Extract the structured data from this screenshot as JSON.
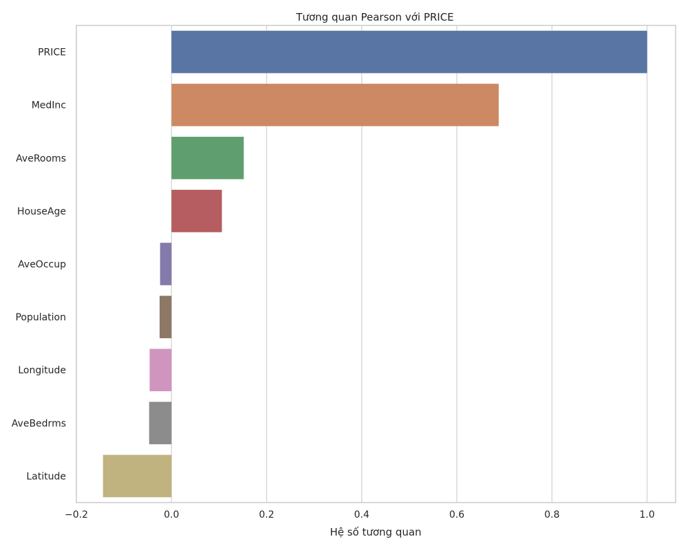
{
  "chart_data": {
    "type": "bar",
    "orientation": "horizontal",
    "title": "Tương quan Pearson với PRICE",
    "xlabel": "Hệ số tương quan",
    "ylabel": "",
    "xlim": [
      -0.2,
      1.06
    ],
    "xticks": [
      -0.2,
      0.0,
      0.2,
      0.4,
      0.6,
      0.8,
      1.0
    ],
    "xtick_labels": [
      "−0.2",
      "0.0",
      "0.2",
      "0.4",
      "0.6",
      "0.8",
      "1.0"
    ],
    "grid": true,
    "categories": [
      "PRICE",
      "MedInc",
      "AveRooms",
      "HouseAge",
      "AveOccup",
      "Population",
      "Longitude",
      "AveBedrms",
      "Latitude"
    ],
    "values": [
      1.0,
      0.688,
      0.152,
      0.106,
      -0.024,
      -0.025,
      -0.046,
      -0.047,
      -0.144
    ],
    "colors": [
      "#5875a4",
      "#cc8963",
      "#5f9e6e",
      "#b55d60",
      "#857aab",
      "#8d7866",
      "#d095bf",
      "#8c8c8c",
      "#c1b37f"
    ],
    "grid_color": "#d4d4d4",
    "frame_color": "#cfcfcf"
  }
}
